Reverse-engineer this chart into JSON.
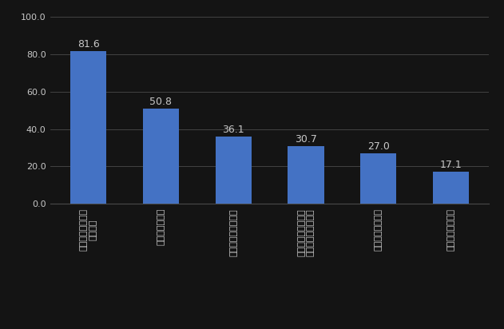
{
  "categories": [
    "所在地・目的地を\n確認する",
    "経路を確認する",
    "移動時間を確認する",
    "所在地・目的地周辺\nのようすを確認する",
    "現在地を確認する",
    "印刷・コピーする"
  ],
  "values": [
    81.6,
    50.8,
    36.1,
    30.7,
    27.0,
    17.1
  ],
  "bar_color": "#4472c4",
  "background_color": "#141414",
  "text_color": "#c8c8c8",
  "grid_color": "#4a4a4a",
  "ylim": [
    0,
    100
  ],
  "yticks": [
    0.0,
    20.0,
    40.0,
    60.0,
    80.0,
    100.0
  ],
  "value_label_fontsize": 9,
  "tick_label_fontsize": 8,
  "bar_width": 0.5
}
